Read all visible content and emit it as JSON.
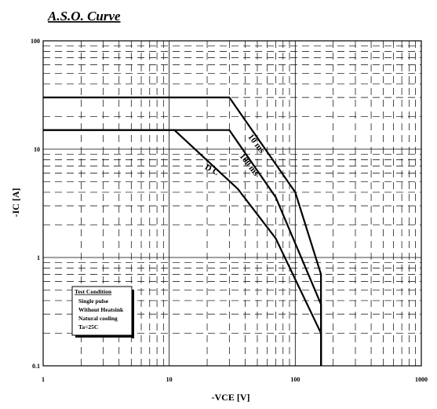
{
  "chart_data": {
    "type": "line",
    "title": "A.S.O. Curve",
    "xlabel": "-VCE  [V]",
    "ylabel": "-IC  [A]",
    "xscale": "log",
    "yscale": "log",
    "xlim": [
      1,
      1000
    ],
    "ylim": [
      0.1,
      100
    ],
    "xticks": [
      "1",
      "10",
      "100",
      "1000"
    ],
    "yticks": [
      "0.1",
      "1",
      "10",
      "100"
    ],
    "grid": true,
    "series": [
      {
        "name": "10 ms",
        "x": [
          1,
          30,
          100,
          160,
          160
        ],
        "y": [
          30,
          30,
          4,
          0.7,
          0.1
        ]
      },
      {
        "name": "100 ms",
        "x": [
          1,
          30,
          70,
          160,
          160
        ],
        "y": [
          15,
          15,
          3.6,
          0.37,
          0.1
        ]
      },
      {
        "name": "D C",
        "x": [
          1,
          11,
          35,
          70,
          160,
          160
        ],
        "y": [
          15,
          15,
          4.3,
          1.5,
          0.2,
          0.1
        ]
      }
    ],
    "legend": {
      "title": "Test Condition",
      "lines": [
        "Single pulse",
        "Without Heatsink",
        "Natural cooling",
        "Ta=25C"
      ]
    }
  }
}
